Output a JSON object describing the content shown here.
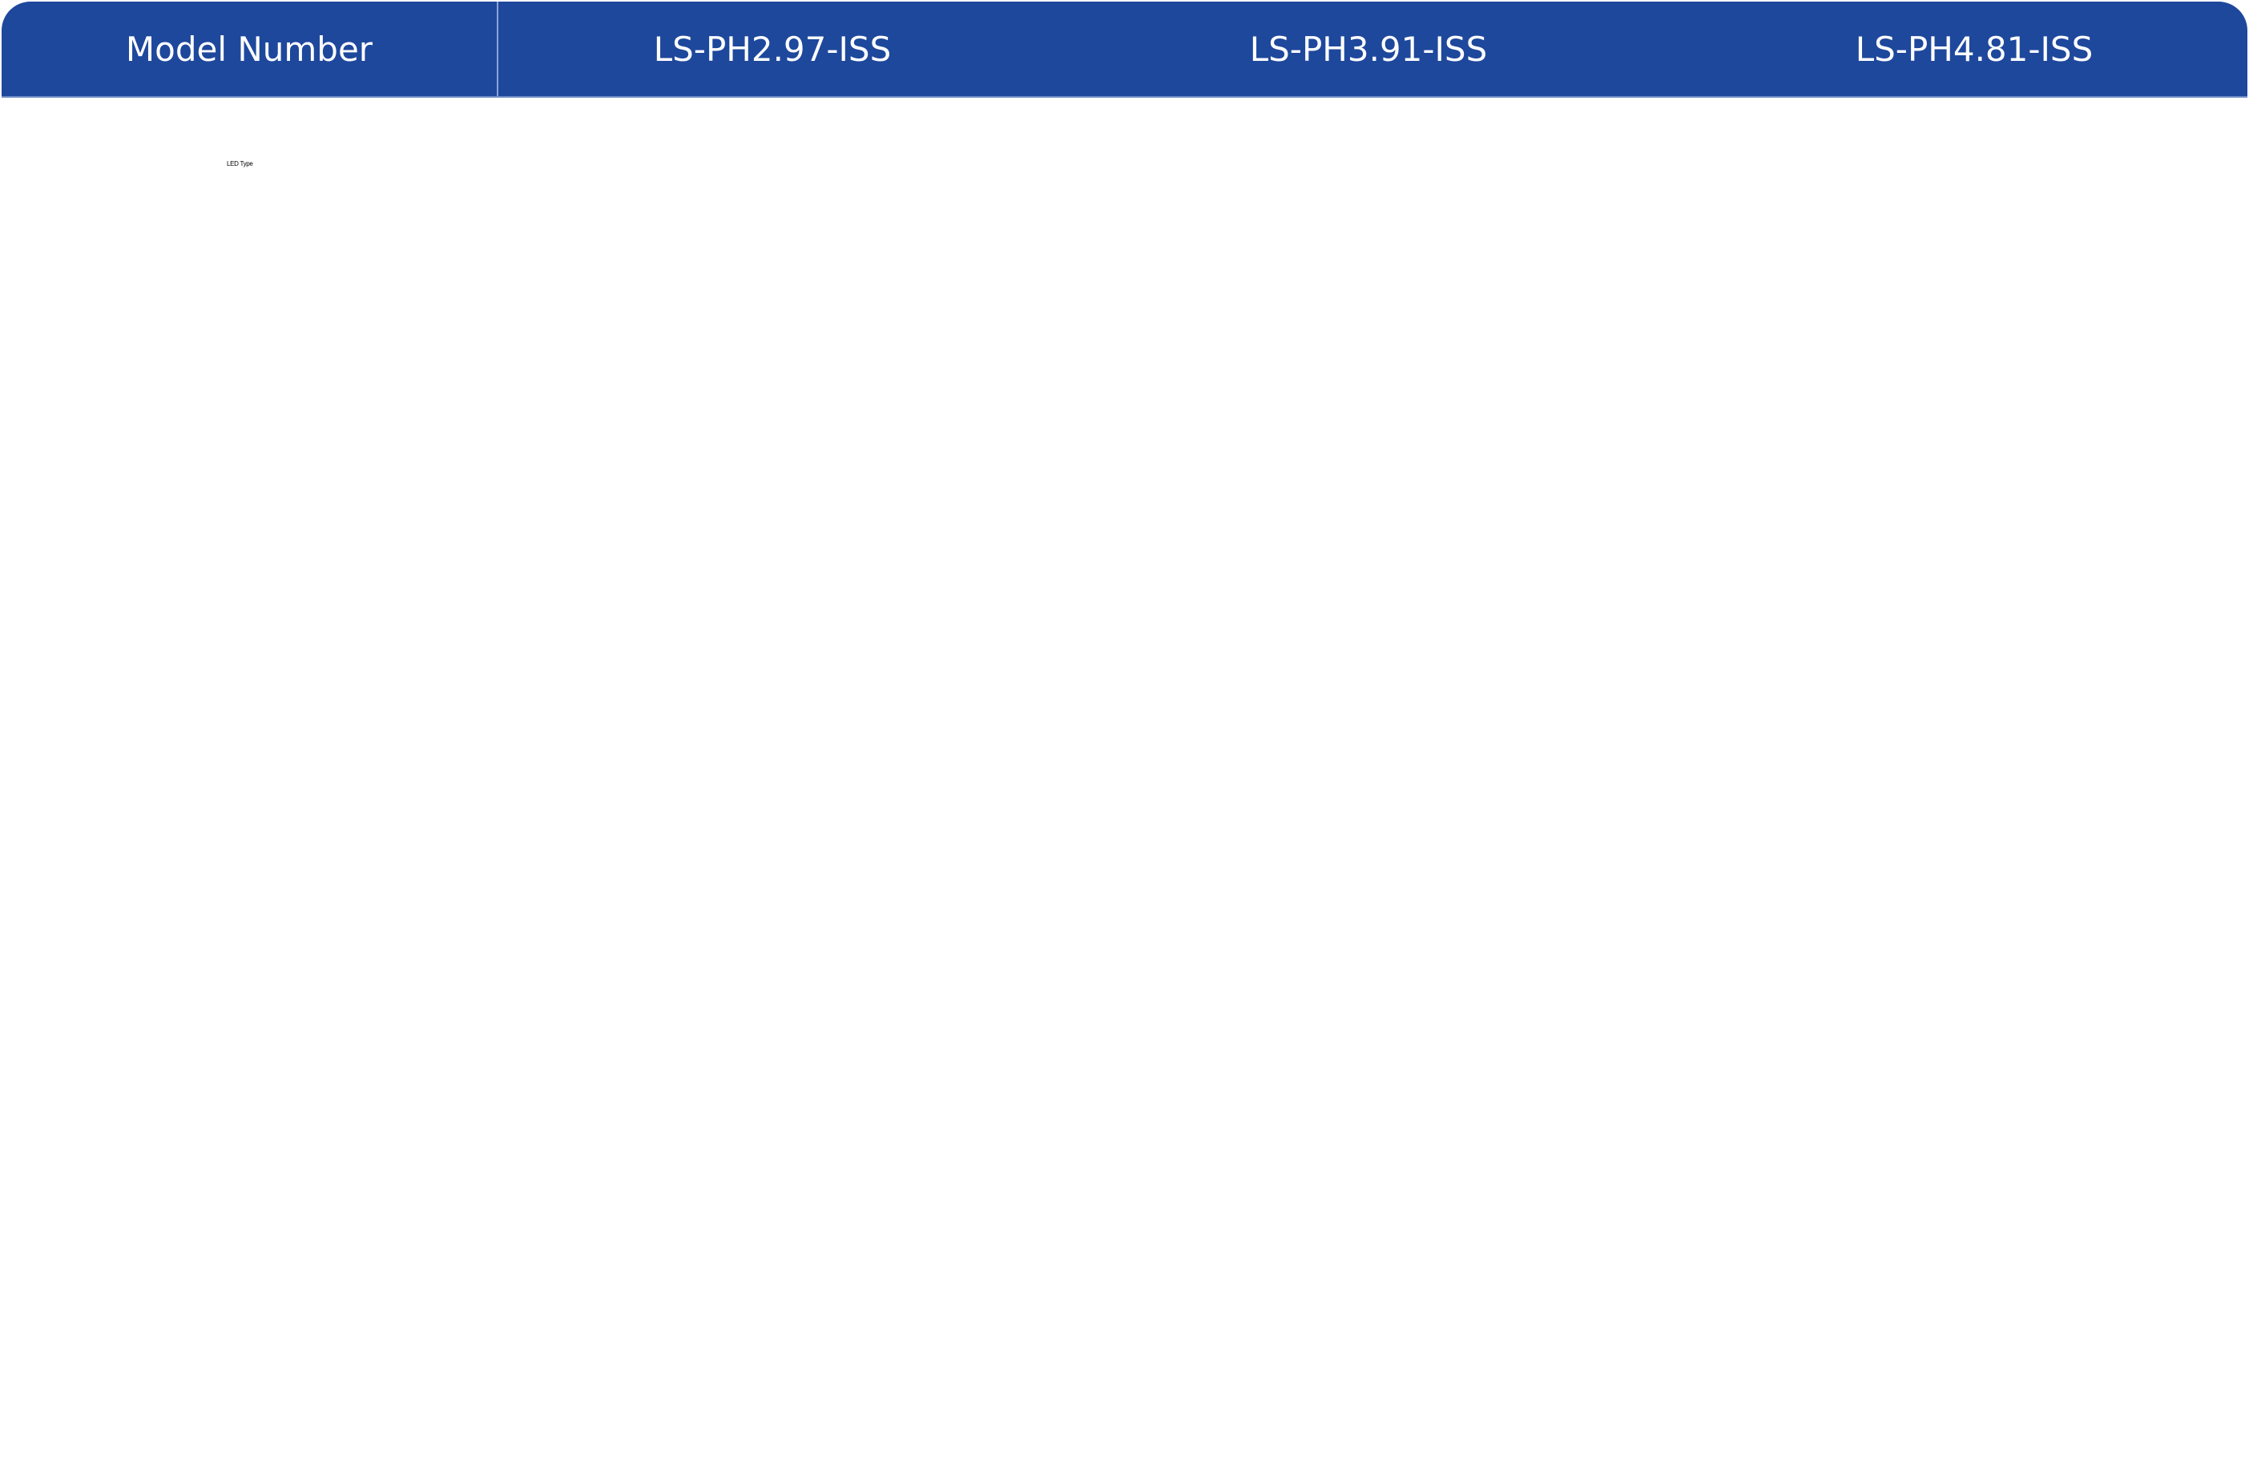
{
  "table": {
    "header": {
      "label": "Model Number",
      "models": [
        "LS-PH2.97-ISS",
        "LS-PH3.91-ISS",
        "LS-PH4.81-ISS"
      ]
    },
    "rows": [
      {
        "label": "LED Type"
      }
    ]
  },
  "colors": {
    "header_bg": "#1e489c",
    "header_text": "#ffffff"
  }
}
